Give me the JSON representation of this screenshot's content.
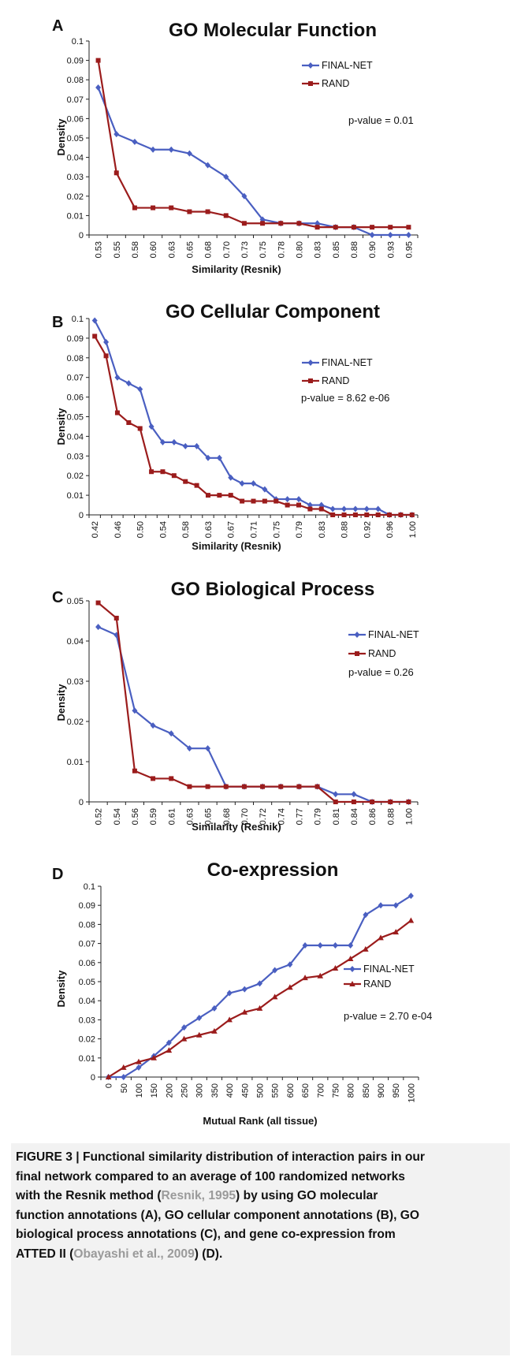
{
  "colors": {
    "final_net": "#4a5fc1",
    "rand": "#9b1c1c"
  },
  "chart_data": [
    {
      "panel": "A",
      "type": "line",
      "title": "GO Molecular  Function",
      "xlabel": "Similarity (Resnik)",
      "ylabel": "Density",
      "categories": [
        "0.53",
        "0.55",
        "0.58",
        "0.60",
        "0.63",
        "0.65",
        "0.68",
        "0.70",
        "0.73",
        "0.75",
        "0.78",
        "0.80",
        "0.83",
        "0.85",
        "0.88",
        "0.90",
        "0.93",
        "0.95"
      ],
      "series": [
        {
          "name": "FINAL-NET",
          "marker": "diamond",
          "values": [
            0.076,
            0.052,
            0.048,
            0.044,
            0.044,
            0.042,
            0.036,
            0.03,
            0.02,
            0.008,
            0.006,
            0.006,
            0.006,
            0.004,
            0.004,
            0.0,
            0.0,
            0.0
          ]
        },
        {
          "name": "RAND",
          "marker": "square",
          "values": [
            0.09,
            0.032,
            0.014,
            0.014,
            0.014,
            0.012,
            0.012,
            0.01,
            0.006,
            0.006,
            0.006,
            0.006,
            0.004,
            0.004,
            0.004,
            0.004,
            0.004,
            0.004
          ]
        }
      ],
      "ylim": [
        0,
        0.1
      ],
      "yticks": [
        "0",
        "0.01",
        "0.02",
        "0.03",
        "0.04",
        "0.05",
        "0.06",
        "0.07",
        "0.08",
        "0.09",
        "0.1"
      ],
      "annotation": "p-value = 0.01",
      "legend": "right"
    },
    {
      "panel": "B",
      "type": "line",
      "title": "GO Cellular Component",
      "xlabel": "Similarity (Resnik)",
      "ylabel": "Density",
      "categories": [
        "0.42",
        "0.44",
        "0.46",
        "0.48",
        "0.50",
        "0.52",
        "0.54",
        "0.56",
        "0.58",
        "0.60",
        "0.63",
        "0.65",
        "0.67",
        "0.69",
        "0.71",
        "0.73",
        "0.75",
        "0.77",
        "0.79",
        "0.81",
        "0.83",
        "0.85",
        "0.88",
        "0.90",
        "0.92",
        "0.94",
        "0.96",
        "0.98",
        "1.00"
      ],
      "tick_labels": [
        "0.42",
        "",
        "0.46",
        "",
        "0.50",
        "",
        "0.54",
        "",
        "0.58",
        "",
        "0.63",
        "",
        "0.67",
        "",
        "0.71",
        "",
        "0.75",
        "",
        "0.79",
        "",
        "0.83",
        "",
        "0.88",
        "",
        "0.92",
        "",
        "0.96",
        "",
        "1.00"
      ],
      "series": [
        {
          "name": "FINAL-NET",
          "marker": "diamond",
          "values": [
            0.099,
            0.088,
            0.07,
            0.067,
            0.064,
            0.045,
            0.037,
            0.037,
            0.035,
            0.035,
            0.029,
            0.029,
            0.019,
            0.016,
            0.016,
            0.013,
            0.008,
            0.008,
            0.008,
            0.005,
            0.005,
            0.003,
            0.003,
            0.003,
            0.003,
            0.003,
            0.0,
            0.0,
            0.0
          ]
        },
        {
          "name": "RAND",
          "marker": "square",
          "values": [
            0.091,
            0.081,
            0.052,
            0.047,
            0.044,
            0.022,
            0.022,
            0.02,
            0.017,
            0.015,
            0.01,
            0.01,
            0.01,
            0.007,
            0.007,
            0.007,
            0.007,
            0.005,
            0.005,
            0.003,
            0.003,
            0.0,
            0.0,
            0.0,
            0.0,
            0.0,
            0.0,
            0.0,
            0.0
          ]
        }
      ],
      "ylim": [
        0,
        0.1
      ],
      "yticks": [
        "0",
        "0.01",
        "0.02",
        "0.03",
        "0.04",
        "0.05",
        "0.06",
        "0.07",
        "0.08",
        "0.09",
        "0.1"
      ],
      "annotation": "p-value = 8.62 e-06",
      "legend": "right"
    },
    {
      "panel": "C",
      "type": "line",
      "title": "GO Biological Process",
      "xlabel": "Similarity (Resnik)",
      "ylabel": "Density",
      "categories": [
        "0.52",
        "0.54",
        "0.56",
        "0.59",
        "0.61",
        "0.63",
        "0.65",
        "0.68",
        "0.70",
        "0.72",
        "0.74",
        "0.77",
        "0.79",
        "0.81",
        "0.84",
        "0.86",
        "0.88",
        "1.00"
      ],
      "series": [
        {
          "name": "FINAL-NET",
          "marker": "diamond",
          "values": [
            0.0435,
            0.0415,
            0.0227,
            0.019,
            0.017,
            0.0133,
            0.0133,
            0.0038,
            0.0038,
            0.0038,
            0.0038,
            0.0038,
            0.0038,
            0.0019,
            0.0019,
            0.0,
            0.0,
            0.0
          ]
        },
        {
          "name": "RAND",
          "marker": "square",
          "values": [
            0.0495,
            0.0457,
            0.0077,
            0.0058,
            0.0058,
            0.0038,
            0.0038,
            0.0038,
            0.0038,
            0.0038,
            0.0038,
            0.0038,
            0.0038,
            0.0,
            0.0,
            0.0,
            0.0,
            0.0
          ]
        }
      ],
      "ylim": [
        0,
        0.05
      ],
      "yticks": [
        "0",
        "0.01",
        "0.02",
        "0.03",
        "0.04",
        "0.05"
      ],
      "annotation": "p-value = 0.26",
      "legend": "right"
    },
    {
      "panel": "D",
      "type": "line",
      "title": "Co-expression",
      "xlabel": "Mutual Rank (all tissue)",
      "ylabel": "Density",
      "categories": [
        "0",
        "50",
        "100",
        "150",
        "200",
        "250",
        "300",
        "350",
        "400",
        "450",
        "500",
        "550",
        "600",
        "650",
        "700",
        "750",
        "800",
        "850",
        "900",
        "950",
        "1000"
      ],
      "series": [
        {
          "name": "FINAL-NET",
          "marker": "diamond",
          "values": [
            0.0,
            0.0,
            0.005,
            0.011,
            0.018,
            0.026,
            0.031,
            0.036,
            0.044,
            0.046,
            0.049,
            0.056,
            0.059,
            0.069,
            0.069,
            0.069,
            0.069,
            0.085,
            0.09,
            0.09,
            0.095
          ]
        },
        {
          "name": "RAND",
          "marker": "triangle",
          "values": [
            0.0,
            0.005,
            0.008,
            0.01,
            0.014,
            0.02,
            0.022,
            0.024,
            0.03,
            0.034,
            0.036,
            0.042,
            0.047,
            0.052,
            0.053,
            0.057,
            0.062,
            0.067,
            0.073,
            0.076,
            0.082
          ]
        }
      ],
      "ylim": [
        0,
        0.1
      ],
      "yticks": [
        "0",
        "0.01",
        "0.02",
        "0.03",
        "0.04",
        "0.05",
        "0.06",
        "0.07",
        "0.08",
        "0.09",
        "0.1"
      ],
      "annotation": "p-value = 2.70 e-04",
      "legend": "right"
    }
  ],
  "caption": {
    "line1": "FIGURE 3 | Functional similarity distribution of interaction pairs in our",
    "line2": "final network compared to an average of 100 randomized networks",
    "line3_a": "with the Resnik method (",
    "line3_ref": "Resnik, 1995",
    "line3_b": ") by using GO molecular",
    "line4": "function annotations (A), GO cellular component annotations (B), GO",
    "line5": "biological process annotations (C), and gene co-expression from",
    "line6_a": "ATTED II (",
    "line6_ref": "Obayashi et al., 2009",
    "line6_b": ") (D)."
  }
}
